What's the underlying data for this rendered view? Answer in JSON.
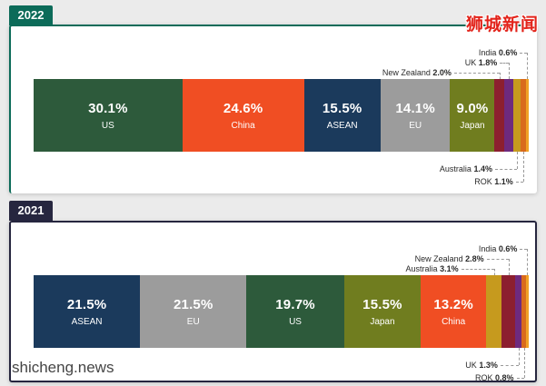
{
  "page": {
    "bg_color": "#ebebeb",
    "watermark_cn": "狮城新闻",
    "watermark_site": "shicheng.news"
  },
  "chart_data": [
    {
      "type": "bar",
      "title": "2022",
      "orientation": "horizontal-stacked",
      "unit": "%",
      "accent_color": "#0c6b59",
      "x_range": [
        0,
        100
      ],
      "legend": "none",
      "segments": [
        {
          "name": "US",
          "pct": "30.1%",
          "value": 30.1,
          "color": "#2d5a3b",
          "inside": true
        },
        {
          "name": "China",
          "pct": "24.6%",
          "value": 24.6,
          "color": "#f04e23",
          "inside": true
        },
        {
          "name": "ASEAN",
          "pct": "15.5%",
          "value": 15.5,
          "color": "#1b3a5c",
          "inside": true
        },
        {
          "name": "EU",
          "pct": "14.1%",
          "value": 14.1,
          "color": "#9c9c9c",
          "inside": true
        },
        {
          "name": "Japan",
          "pct": "9.0%",
          "value": 9.0,
          "color": "#707d1f",
          "inside": true
        },
        {
          "name": "New Zealand",
          "pct": "2.0%",
          "value": 2.0,
          "color": "#8c1f2f",
          "callout": "above",
          "row": 2,
          "offset": 50
        },
        {
          "name": "UK",
          "pct": "1.8%",
          "value": 1.8,
          "color": "#6e2a7e",
          "callout": "above",
          "row": 1,
          "offset": 10
        },
        {
          "name": "Australia",
          "pct": "1.4%",
          "value": 1.4,
          "color": "#c69a1e",
          "callout": "below",
          "row": 0,
          "offset": 24
        },
        {
          "name": "ROK",
          "pct": "1.1%",
          "value": 1.1,
          "color": "#d96a1c",
          "callout": "below",
          "row": 1,
          "offset": 8
        },
        {
          "name": "India",
          "pct": "0.6%",
          "value": 0.6,
          "color": "#f0a125",
          "callout": "above",
          "row": 0,
          "offset": 8
        }
      ]
    },
    {
      "type": "bar",
      "title": "2021",
      "orientation": "horizontal-stacked",
      "unit": "%",
      "accent_color": "#26263f",
      "x_range": [
        0,
        100
      ],
      "legend": "none",
      "segments": [
        {
          "name": "ASEAN",
          "pct": "21.5%",
          "value": 21.5,
          "color": "#1b3a5c",
          "inside": true
        },
        {
          "name": "EU",
          "pct": "21.5%",
          "value": 21.5,
          "color": "#9c9c9c",
          "inside": true
        },
        {
          "name": "US",
          "pct": "19.7%",
          "value": 19.7,
          "color": "#2d5a3b",
          "inside": true
        },
        {
          "name": "Japan",
          "pct": "15.5%",
          "value": 15.5,
          "color": "#707d1f",
          "inside": true
        },
        {
          "name": "China",
          "pct": "13.2%",
          "value": 13.2,
          "color": "#f04e23",
          "inside": true
        },
        {
          "name": "Australia",
          "pct": "3.1%",
          "value": 3.1,
          "color": "#c69a1e",
          "callout": "above",
          "row": 2,
          "offset": 36
        },
        {
          "name": "New Zealand",
          "pct": "2.8%",
          "value": 2.8,
          "color": "#8c1f2f",
          "callout": "above",
          "row": 1,
          "offset": 24
        },
        {
          "name": "UK",
          "pct": "1.3%",
          "value": 1.3,
          "color": "#6e2a7e",
          "callout": "below",
          "row": 0,
          "offset": 20
        },
        {
          "name": "ROK",
          "pct": "0.8%",
          "value": 0.8,
          "color": "#d96a1c",
          "callout": "below",
          "row": 1,
          "offset": 8
        },
        {
          "name": "India",
          "pct": "0.6%",
          "value": 0.6,
          "color": "#f0a125",
          "callout": "above",
          "row": 0,
          "offset": 8
        }
      ]
    }
  ]
}
